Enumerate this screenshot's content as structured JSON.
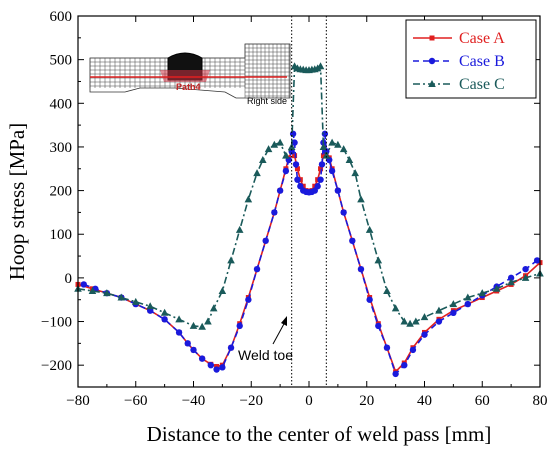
{
  "chart_data": {
    "type": "line",
    "xlabel": "Distance to the center of weld pass [mm]",
    "ylabel": "Hoop stress [MPa]",
    "xlim": [
      -80,
      80
    ],
    "ylim": [
      -250,
      600
    ],
    "xticks": [
      -80,
      -60,
      -40,
      -20,
      0,
      20,
      40,
      60,
      80
    ],
    "yticks": [
      -200,
      -100,
      0,
      100,
      200,
      300,
      400,
      500,
      600
    ],
    "grid": false,
    "legend_position": "top-right",
    "weld_toe_lines_x": [
      -6,
      6
    ],
    "annotations": [
      {
        "text": "Weld toe"
      }
    ],
    "inset": {
      "path_label": "Path4",
      "side_label": "Right side"
    },
    "series": [
      {
        "name": "Case A",
        "color": "#e02020",
        "marker": "square",
        "line": "solid",
        "x": [
          -80,
          -75,
          -70,
          -65,
          -60,
          -55,
          -50,
          -45,
          -42,
          -40,
          -37,
          -34,
          -32,
          -30,
          -27,
          -24,
          -21,
          -18,
          -15,
          -12,
          -10,
          -8,
          -7,
          -6,
          -5,
          -4,
          -3,
          -2,
          -1,
          0,
          1,
          2,
          3,
          4,
          5,
          6,
          7,
          8,
          10,
          12,
          15,
          18,
          21,
          24,
          27,
          30,
          33,
          36,
          40,
          45,
          50,
          55,
          60,
          65,
          70,
          75,
          80
        ],
        "y": [
          -15,
          -25,
          -35,
          -45,
          -60,
          -75,
          -95,
          -125,
          -150,
          -165,
          -185,
          -198,
          -203,
          -200,
          -160,
          -105,
          -45,
          20,
          85,
          150,
          200,
          250,
          275,
          290,
          280,
          250,
          225,
          210,
          200,
          198,
          200,
          210,
          225,
          250,
          280,
          290,
          275,
          250,
          200,
          150,
          85,
          20,
          -45,
          -105,
          -160,
          -215,
          -195,
          -160,
          -125,
          -95,
          -75,
          -60,
          -45,
          -30,
          -15,
          5,
          35
        ]
      },
      {
        "name": "Case B",
        "color": "#1a1adc",
        "marker": "circle",
        "line": "dashed",
        "x": [
          -78,
          -74,
          -70,
          -65,
          -60,
          -55,
          -50,
          -45,
          -42,
          -40,
          -37,
          -34,
          -32,
          -30,
          -27,
          -24,
          -21,
          -18,
          -15,
          -12,
          -10,
          -8,
          -7,
          -6,
          -5.5,
          -5,
          -4.5,
          -4,
          -3,
          -2,
          -1,
          0,
          1,
          2,
          3,
          4,
          4.5,
          5,
          5.5,
          6,
          7,
          8,
          10,
          12,
          15,
          18,
          21,
          24,
          27,
          30,
          33,
          36,
          40,
          45,
          50,
          55,
          60,
          65,
          70,
          75,
          79
        ],
        "y": [
          -15,
          -25,
          -35,
          -45,
          -60,
          -75,
          -95,
          -125,
          -150,
          -165,
          -185,
          -200,
          -210,
          -205,
          -160,
          -110,
          -50,
          20,
          85,
          150,
          200,
          245,
          270,
          290,
          330,
          310,
          260,
          225,
          210,
          200,
          197,
          196,
          197,
          200,
          210,
          225,
          260,
          310,
          330,
          290,
          270,
          245,
          200,
          150,
          85,
          20,
          -50,
          -110,
          -160,
          -220,
          -200,
          -165,
          -130,
          -100,
          -80,
          -60,
          -40,
          -20,
          0,
          20,
          40
        ]
      },
      {
        "name": "Case C",
        "color": "#1a5a5a",
        "marker": "triangle",
        "line": "dashdot",
        "x": [
          -80,
          -75,
          -70,
          -65,
          -60,
          -55,
          -50,
          -45,
          -40,
          -37,
          -35,
          -33,
          -30,
          -27,
          -24,
          -21,
          -18,
          -16,
          -14,
          -12,
          -10,
          -8,
          -6,
          -5,
          -4,
          -3,
          -2,
          -1,
          0,
          1,
          2,
          3,
          4,
          5,
          6,
          8,
          10,
          12,
          14,
          16,
          18,
          21,
          24,
          27,
          30,
          33,
          35,
          37,
          40,
          45,
          50,
          55,
          60,
          65,
          70,
          75,
          80
        ],
        "y": [
          -25,
          -30,
          -35,
          -45,
          -55,
          -65,
          -80,
          -95,
          -110,
          -112,
          -100,
          -70,
          -30,
          40,
          110,
          180,
          240,
          270,
          295,
          305,
          310,
          280,
          300,
          485,
          480,
          478,
          477,
          476,
          476,
          477,
          478,
          480,
          485,
          300,
          280,
          310,
          305,
          295,
          270,
          240,
          180,
          110,
          40,
          -30,
          -70,
          -100,
          -105,
          -100,
          -90,
          -75,
          -60,
          -45,
          -35,
          -25,
          -10,
          0,
          10
        ]
      }
    ]
  }
}
